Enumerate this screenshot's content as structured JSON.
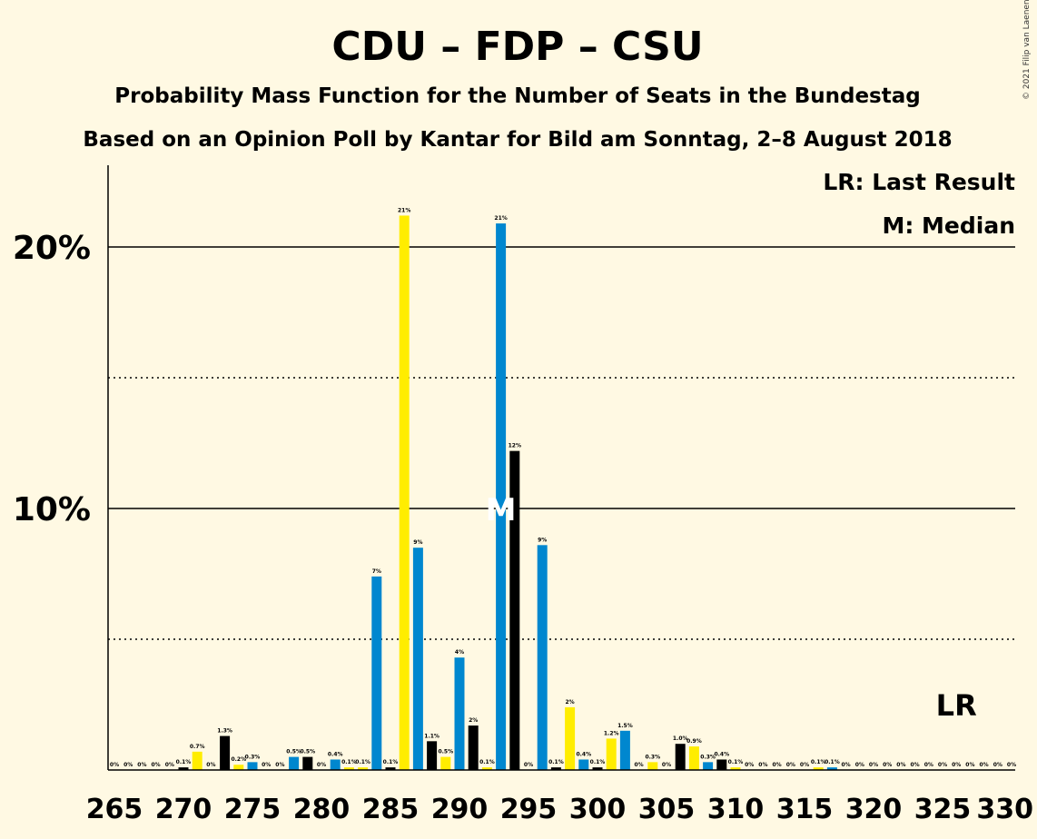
{
  "chart_data": {
    "type": "bar",
    "title": "CDU – FDP – CSU",
    "subtitle": "Probability Mass Function for the Number of Seats in the Bundestag",
    "subtitle2": "Based on an Opinion Poll by Kantar for Bild am Sonntag, 2–8 August 2018",
    "copyright": "© 2021 Filip van Laenen",
    "legend": {
      "lr": "LR: Last Result",
      "median": "M: Median"
    },
    "lr_label": "LR",
    "median_label": "M",
    "ylim": [
      0,
      23
    ],
    "y_ticks": [
      {
        "value": 10,
        "label": "10%"
      },
      {
        "value": 20,
        "label": "20%"
      }
    ],
    "y_dotted": [
      5,
      15
    ],
    "x_ticks": [
      265,
      270,
      275,
      280,
      285,
      290,
      295,
      300,
      305,
      310,
      315,
      320,
      325,
      330
    ],
    "colors": {
      "background": "#FFF9E3",
      "blue": "#0087CF",
      "yellow": "#FFED00",
      "black": "#000000"
    },
    "median_seat": 293,
    "last_result_seat": 326,
    "bars": [
      {
        "seat": 265,
        "value": 0,
        "label": "0%",
        "color": "blue"
      },
      {
        "seat": 266,
        "value": 0,
        "label": "0%",
        "color": "yellow"
      },
      {
        "seat": 267,
        "value": 0,
        "label": "0%",
        "color": "black"
      },
      {
        "seat": 268,
        "value": 0,
        "label": "0%",
        "color": "blue"
      },
      {
        "seat": 269,
        "value": 0,
        "label": "0%",
        "color": "yellow"
      },
      {
        "seat": 270,
        "value": 0.1,
        "label": "0.1%",
        "color": "black"
      },
      {
        "seat": 271,
        "value": 0.7,
        "label": "0.7%",
        "color": "yellow"
      },
      {
        "seat": 272,
        "value": 0,
        "label": "0%",
        "color": "black"
      },
      {
        "seat": 273,
        "value": 1.3,
        "label": "1.3%",
        "color": "black"
      },
      {
        "seat": 274,
        "value": 0.2,
        "label": "0.2%",
        "color": "yellow"
      },
      {
        "seat": 275,
        "value": 0.3,
        "label": "0.3%",
        "color": "blue"
      },
      {
        "seat": 276,
        "value": 0,
        "label": "0%",
        "color": "yellow"
      },
      {
        "seat": 277,
        "value": 0,
        "label": "0%",
        "color": "black"
      },
      {
        "seat": 278,
        "value": 0.5,
        "label": "0.5%",
        "color": "blue"
      },
      {
        "seat": 279,
        "value": 0.5,
        "label": "0.5%",
        "color": "black"
      },
      {
        "seat": 280,
        "value": 0,
        "label": "0%",
        "color": "yellow"
      },
      {
        "seat": 281,
        "value": 0.4,
        "label": "0.4%",
        "color": "blue"
      },
      {
        "seat": 282,
        "value": 0.1,
        "label": "0.1%",
        "color": "yellow"
      },
      {
        "seat": 283,
        "value": 0.1,
        "label": "0.1%",
        "color": "yellow"
      },
      {
        "seat": 284,
        "value": 7.4,
        "label": "7%",
        "color": "blue"
      },
      {
        "seat": 285,
        "value": 0.1,
        "label": "0.1%",
        "color": "black"
      },
      {
        "seat": 286,
        "value": 21.2,
        "label": "21%",
        "color": "yellow"
      },
      {
        "seat": 287,
        "value": 8.5,
        "label": "9%",
        "color": "blue"
      },
      {
        "seat": 288,
        "value": 1.1,
        "label": "1.1%",
        "color": "black"
      },
      {
        "seat": 289,
        "value": 0.5,
        "label": "0.5%",
        "color": "yellow"
      },
      {
        "seat": 290,
        "value": 4.3,
        "label": "4%",
        "color": "blue"
      },
      {
        "seat": 291,
        "value": 1.7,
        "label": "2%",
        "color": "black"
      },
      {
        "seat": 292,
        "value": 0.1,
        "label": "0.1%",
        "color": "yellow"
      },
      {
        "seat": 293,
        "value": 20.9,
        "label": "21%",
        "color": "blue"
      },
      {
        "seat": 294,
        "value": 12.2,
        "label": "12%",
        "color": "black"
      },
      {
        "seat": 295,
        "value": 0,
        "label": "0%",
        "color": "yellow"
      },
      {
        "seat": 296,
        "value": 8.6,
        "label": "9%",
        "color": "blue"
      },
      {
        "seat": 297,
        "value": 0.1,
        "label": "0.1%",
        "color": "black"
      },
      {
        "seat": 298,
        "value": 2.4,
        "label": "2%",
        "color": "yellow"
      },
      {
        "seat": 299,
        "value": 0.4,
        "label": "0.4%",
        "color": "blue"
      },
      {
        "seat": 300,
        "value": 0.1,
        "label": "0.1%",
        "color": "black"
      },
      {
        "seat": 301,
        "value": 1.2,
        "label": "1.2%",
        "color": "yellow"
      },
      {
        "seat": 302,
        "value": 1.5,
        "label": "1.5%",
        "color": "blue"
      },
      {
        "seat": 303,
        "value": 0,
        "label": "0%",
        "color": "black"
      },
      {
        "seat": 304,
        "value": 0.3,
        "label": "0.3%",
        "color": "yellow"
      },
      {
        "seat": 305,
        "value": 0,
        "label": "0%",
        "color": "blue"
      },
      {
        "seat": 306,
        "value": 1.0,
        "label": "1.0%",
        "color": "black"
      },
      {
        "seat": 307,
        "value": 0.9,
        "label": "0.9%",
        "color": "yellow"
      },
      {
        "seat": 308,
        "value": 0.3,
        "label": "0.3%",
        "color": "blue"
      },
      {
        "seat": 309,
        "value": 0.4,
        "label": "0.4%",
        "color": "black"
      },
      {
        "seat": 310,
        "value": 0.1,
        "label": "0.1%",
        "color": "yellow"
      },
      {
        "seat": 311,
        "value": 0,
        "label": "0%",
        "color": "blue"
      },
      {
        "seat": 312,
        "value": 0,
        "label": "0%",
        "color": "black"
      },
      {
        "seat": 313,
        "value": 0,
        "label": "0%",
        "color": "yellow"
      },
      {
        "seat": 314,
        "value": 0,
        "label": "0%",
        "color": "blue"
      },
      {
        "seat": 315,
        "value": 0,
        "label": "0%",
        "color": "black"
      },
      {
        "seat": 316,
        "value": 0.1,
        "label": "0.1%",
        "color": "yellow"
      },
      {
        "seat": 317,
        "value": 0.1,
        "label": "0.1%",
        "color": "blue"
      },
      {
        "seat": 318,
        "value": 0,
        "label": "0%",
        "color": "black"
      },
      {
        "seat": 319,
        "value": 0,
        "label": "0%",
        "color": "yellow"
      },
      {
        "seat": 320,
        "value": 0,
        "label": "0%",
        "color": "blue"
      },
      {
        "seat": 321,
        "value": 0,
        "label": "0%",
        "color": "black"
      },
      {
        "seat": 322,
        "value": 0,
        "label": "0%",
        "color": "yellow"
      },
      {
        "seat": 323,
        "value": 0,
        "label": "0%",
        "color": "blue"
      },
      {
        "seat": 324,
        "value": 0,
        "label": "0%",
        "color": "black"
      },
      {
        "seat": 325,
        "value": 0,
        "label": "0%",
        "color": "yellow"
      },
      {
        "seat": 326,
        "value": 0,
        "label": "0%",
        "color": "blue"
      },
      {
        "seat": 327,
        "value": 0,
        "label": "0%",
        "color": "black"
      },
      {
        "seat": 328,
        "value": 0,
        "label": "0%",
        "color": "yellow"
      },
      {
        "seat": 329,
        "value": 0,
        "label": "0%",
        "color": "blue"
      },
      {
        "seat": 330,
        "value": 0,
        "label": "0%",
        "color": "black"
      }
    ]
  }
}
